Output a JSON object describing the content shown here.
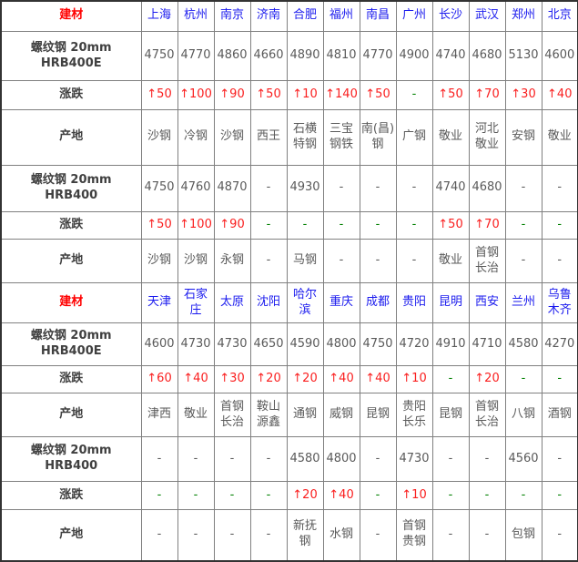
{
  "colors": {
    "section_title_red": "#ff0000",
    "city_blue": "#1a1aee",
    "change_up_red": "#fa1e1e",
    "change_flat_green": "#008000",
    "value_gray": "#5a5a5a",
    "label_dark_gray": "#404040",
    "inner_border_gray": "#808080",
    "outer_border_dark": "#333333"
  },
  "chart_data": {
    "type": "table",
    "title": "",
    "sections": [
      {
        "header_label": "建材",
        "cities": [
          "上海",
          "杭州",
          "南京",
          "济南",
          "合肥",
          "福州",
          "南昌",
          "广州",
          "长沙",
          "武汉",
          "郑州",
          "北京"
        ],
        "rows": [
          {
            "label": "螺纹钢 20mm HRB400E",
            "type": "price",
            "values": [
              "4750",
              "4770",
              "4860",
              "4660",
              "4890",
              "4810",
              "4770",
              "4900",
              "4740",
              "4680",
              "5130",
              "4600"
            ]
          },
          {
            "label": "涨跌",
            "type": "change",
            "values": [
              "↑50",
              "↑100",
              "↑90",
              "↑50",
              "↑10",
              "↑140",
              "↑50",
              "-",
              "↑50",
              "↑70",
              "↑30",
              "↑40"
            ]
          },
          {
            "label": "产地",
            "type": "origin",
            "values": [
              "沙钢",
              "冷钢",
              "沙钢",
              "西王",
              "石横特钢",
              "三宝钢铁",
              "南(昌)钢",
              "广钢",
              "敬业",
              "河北敬业",
              "安钢",
              "敬业"
            ]
          },
          {
            "label": "螺纹钢 20mm HRB400",
            "type": "price",
            "values": [
              "4750",
              "4760",
              "4870",
              "-",
              "4930",
              "-",
              "-",
              "-",
              "4740",
              "4680",
              "-",
              "-"
            ]
          },
          {
            "label": "涨跌",
            "type": "change",
            "values": [
              "↑50",
              "↑100",
              "↑90",
              "-",
              "-",
              "-",
              "-",
              "-",
              "↑50",
              "↑70",
              "-",
              "-"
            ]
          },
          {
            "label": "产地",
            "type": "origin",
            "values": [
              "沙钢",
              "沙钢",
              "永钢",
              "-",
              "马钢",
              "-",
              "-",
              "-",
              "敬业",
              "首钢长治",
              "-",
              "-"
            ]
          }
        ]
      },
      {
        "header_label": "建材",
        "cities": [
          "天津",
          "石家庄",
          "太原",
          "沈阳",
          "哈尔滨",
          "重庆",
          "成都",
          "贵阳",
          "昆明",
          "西安",
          "兰州",
          "乌鲁木齐"
        ],
        "rows": [
          {
            "label": "螺纹钢 20mm HRB400E",
            "type": "price",
            "values": [
              "4600",
              "4730",
              "4730",
              "4650",
              "4590",
              "4800",
              "4750",
              "4720",
              "4910",
              "4710",
              "4580",
              "4270"
            ]
          },
          {
            "label": "涨跌",
            "type": "change",
            "values": [
              "↑60",
              "↑40",
              "↑30",
              "↑20",
              "↑20",
              "↑40",
              "↑40",
              "↑10",
              "-",
              "↑20",
              "-",
              "-"
            ]
          },
          {
            "label": "产地",
            "type": "origin",
            "values": [
              "津西",
              "敬业",
              "首钢长治",
              "鞍山源鑫",
              "通钢",
              "威钢",
              "昆钢",
              "贵阳长乐",
              "昆钢",
              "首钢长治",
              "八钢",
              "酒钢"
            ]
          },
          {
            "label": "螺纹钢 20mm HRB400",
            "type": "price",
            "values": [
              "-",
              "-",
              "-",
              "-",
              "4580",
              "4800",
              "-",
              "4730",
              "-",
              "-",
              "4560",
              "-"
            ]
          },
          {
            "label": "涨跌",
            "type": "change",
            "values": [
              "-",
              "-",
              "-",
              "-",
              "↑20",
              "↑40",
              "-",
              "↑10",
              "-",
              "-",
              "-",
              "-"
            ]
          },
          {
            "label": "产地",
            "type": "origin",
            "values": [
              "-",
              "-",
              "-",
              "-",
              "新抚钢",
              "水钢",
              "-",
              "首钢贵钢",
              "-",
              "-",
              "包钢",
              "-"
            ]
          }
        ]
      }
    ]
  }
}
